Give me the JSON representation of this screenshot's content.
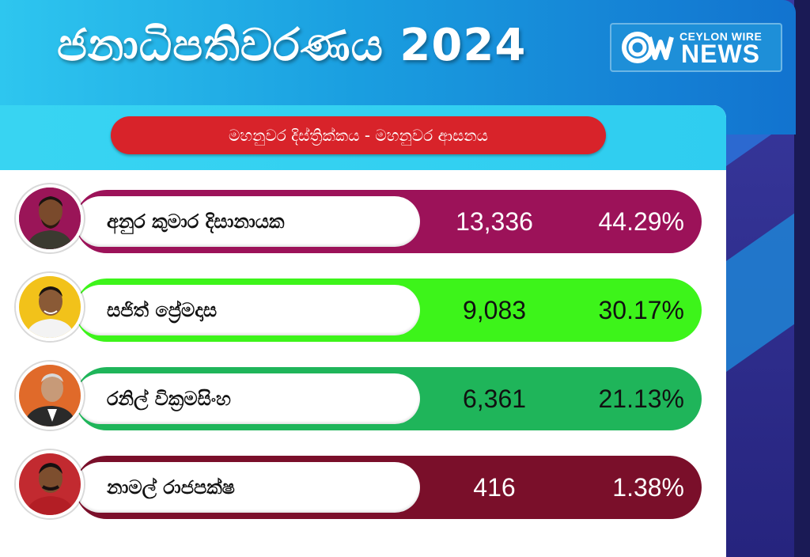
{
  "header": {
    "title": "ජනාධිපතිවරණය 2024",
    "logo_top": "CEYLON WIRE",
    "logo_bottom": "NEWS",
    "logo_mark": "CW"
  },
  "subtitle": "මහනුවර දිස්ත්‍රික්කය - මහනුවර ආසනය",
  "candidates": [
    {
      "name": "අනුර කුමාර දිසානායක",
      "votes": "13,336",
      "percent": "44.29%",
      "color": "#9c1259",
      "text_color": "#ffffff"
    },
    {
      "name": "සජිත් ප්‍රේමදාස",
      "votes": "9,083",
      "percent": "30.17%",
      "color": "#3df41a",
      "text_color": "#111111"
    },
    {
      "name": "රනිල් වික්‍රමසිංහ",
      "votes": "6,361",
      "percent": "21.13%",
      "color": "#1fb55a",
      "text_color": "#111111"
    },
    {
      "name": "නාමල් රාජපක්ෂ",
      "votes": "416",
      "percent": "1.38%",
      "color": "#7a0f2a",
      "text_color": "#ffffff"
    }
  ],
  "icons": [
    "avatar-anura",
    "avatar-sajith",
    "avatar-ranil",
    "avatar-namal",
    "cw-logo-icon"
  ]
}
